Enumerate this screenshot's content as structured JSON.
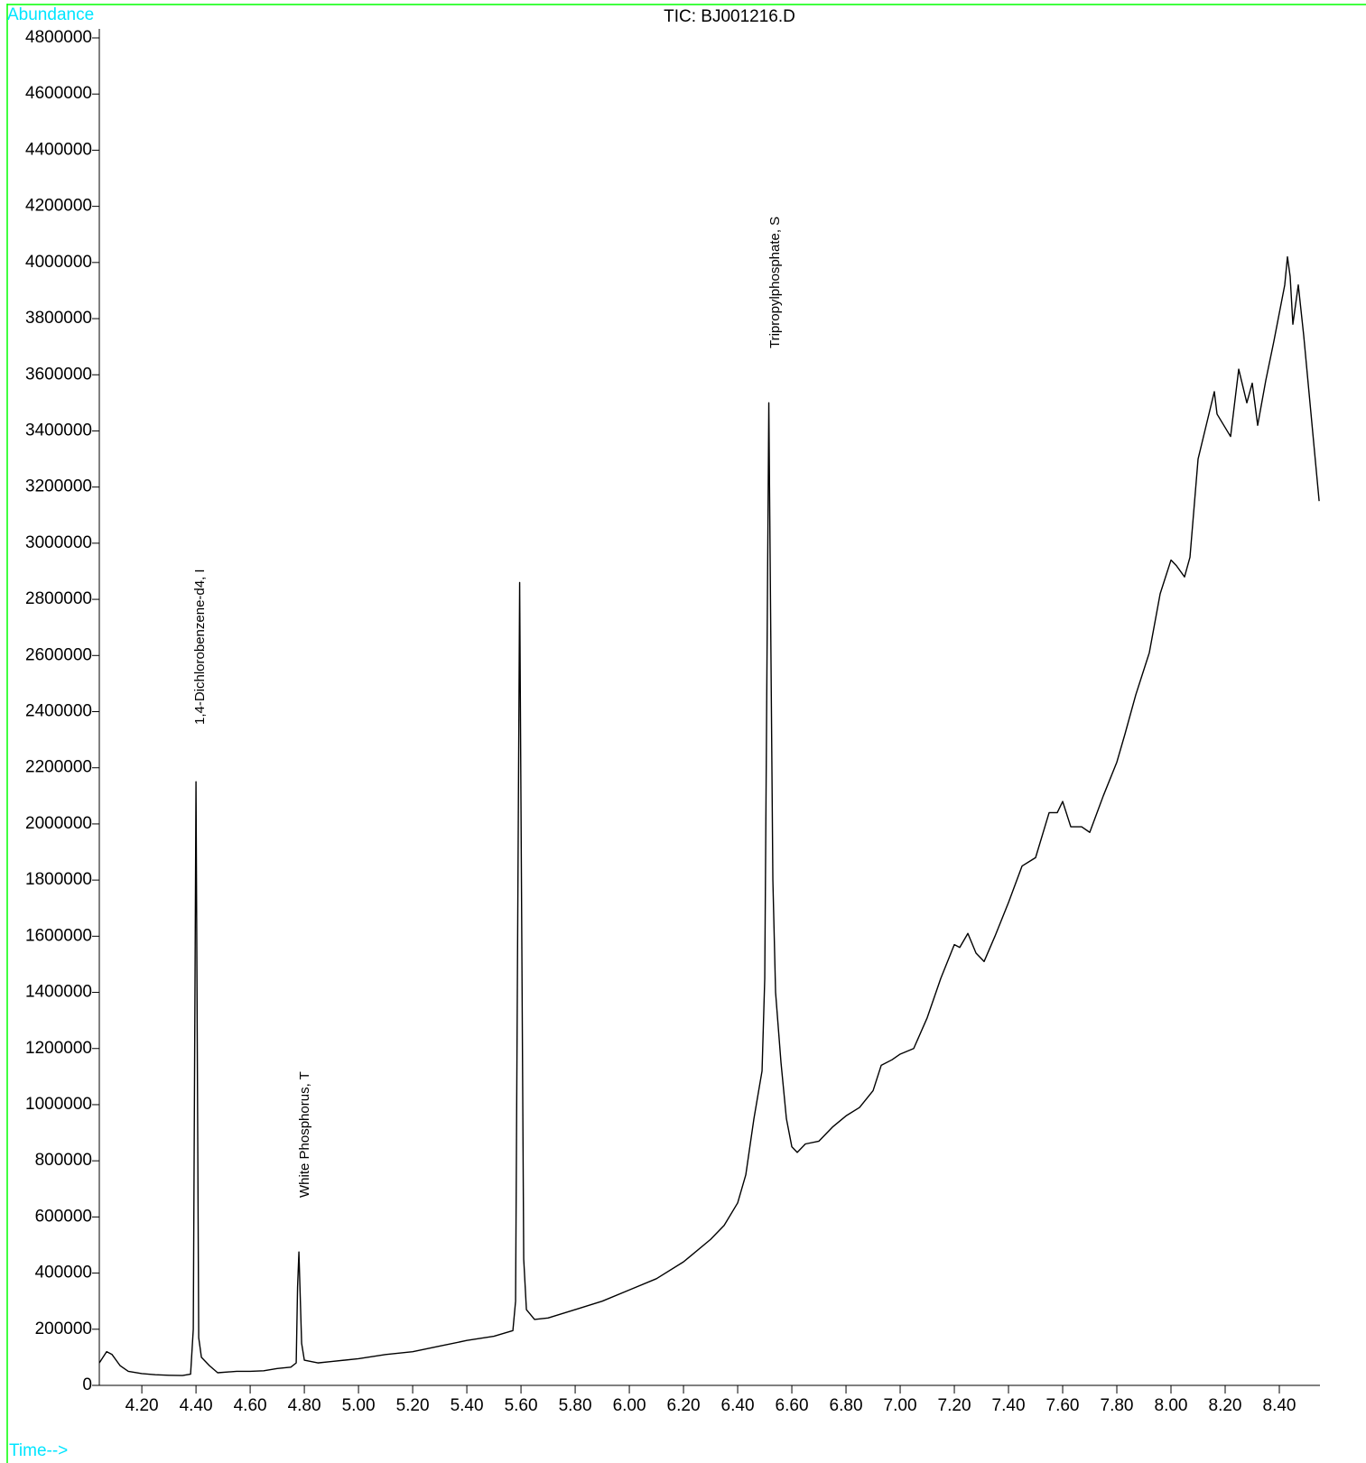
{
  "chart_data": {
    "type": "line",
    "title": "TIC: BJ001216.D",
    "y_label": "Abundance",
    "x_label": "Time-->",
    "annotations": [
      "1,4-Dichlorobenzene-d4, I",
      "White Phosphorus, T",
      "Tripropylphosphate, S"
    ],
    "x": [
      4.043,
      4.07,
      4.09,
      4.12,
      4.15,
      4.2,
      4.25,
      4.3,
      4.35,
      4.38,
      4.39,
      4.4,
      4.41,
      4.42,
      4.45,
      4.48,
      4.55,
      4.6,
      4.65,
      4.7,
      4.75,
      4.77,
      4.775,
      4.78,
      4.79,
      4.8,
      4.85,
      4.9,
      5.0,
      5.1,
      5.2,
      5.3,
      5.4,
      5.5,
      5.57,
      5.58,
      5.595,
      5.61,
      5.62,
      5.65,
      5.7,
      5.8,
      5.9,
      6.0,
      6.1,
      6.2,
      6.3,
      6.35,
      6.4,
      6.43,
      6.46,
      6.49,
      6.5,
      6.515,
      6.53,
      6.54,
      6.56,
      6.58,
      6.6,
      6.62,
      6.65,
      6.7,
      6.75,
      6.8,
      6.85,
      6.9,
      6.93,
      6.97,
      7.0,
      7.05,
      7.1,
      7.15,
      7.2,
      7.22,
      7.25,
      7.28,
      7.31,
      7.35,
      7.4,
      7.45,
      7.5,
      7.55,
      7.58,
      7.6,
      7.63,
      7.67,
      7.7,
      7.75,
      7.8,
      7.83,
      7.87,
      7.92,
      7.96,
      8.0,
      8.02,
      8.05,
      8.07,
      8.1,
      8.13,
      8.16,
      8.17,
      8.22,
      8.25,
      8.28,
      8.3,
      8.32,
      8.35,
      8.38,
      8.42,
      8.43,
      8.44,
      8.45,
      8.47,
      8.49,
      8.547
    ],
    "series": [
      {
        "name": "TIC",
        "color": "#000000",
        "values": [
          80000,
          120000,
          110000,
          70000,
          50000,
          42000,
          38000,
          36000,
          35000,
          40000,
          200000,
          2150000,
          170000,
          100000,
          70000,
          45000,
          50000,
          50000,
          52000,
          60000,
          65000,
          80000,
          350000,
          475000,
          150000,
          90000,
          80000,
          85000,
          95000,
          110000,
          120000,
          140000,
          160000,
          175000,
          195000,
          300000,
          2860000,
          450000,
          270000,
          235000,
          240000,
          270000,
          300000,
          340000,
          380000,
          440000,
          520000,
          570000,
          650000,
          750000,
          950000,
          1120000,
          1450000,
          3500000,
          1800000,
          1400000,
          1150000,
          950000,
          850000,
          830000,
          860000,
          870000,
          920000,
          960000,
          990000,
          1050000,
          1140000,
          1160000,
          1180000,
          1200000,
          1310000,
          1450000,
          1570000,
          1560000,
          1610000,
          1540000,
          1510000,
          1600000,
          1720000,
          1850000,
          1880000,
          2040000,
          2040000,
          2080000,
          1990000,
          1990000,
          1970000,
          2100000,
          2220000,
          2320000,
          2460000,
          2610000,
          2820000,
          2940000,
          2920000,
          2880000,
          2950000,
          3300000,
          3420000,
          3540000,
          3460000,
          3380000,
          3620000,
          3500000,
          3570000,
          3420000,
          3580000,
          3720000,
          3920000,
          4020000,
          3950000,
          3780000,
          3920000,
          3740000,
          3150000
        ]
      }
    ],
    "xlim": [
      4.043,
      8.55
    ],
    "ylim": [
      0,
      4800000
    ],
    "xticks": [
      {
        "value": 4.2,
        "label": "4.20"
      },
      {
        "value": 4.4,
        "label": "4.40"
      },
      {
        "value": 4.6,
        "label": "4.60"
      },
      {
        "value": 4.8,
        "label": "4.80"
      },
      {
        "value": 5,
        "label": "5.00"
      },
      {
        "value": 5.2,
        "label": "5.20"
      },
      {
        "value": 5.4,
        "label": "5.40"
      },
      {
        "value": 5.6,
        "label": "5.60"
      },
      {
        "value": 5.8,
        "label": "5.80"
      },
      {
        "value": 6,
        "label": "6.00"
      },
      {
        "value": 6.2,
        "label": "6.20"
      },
      {
        "value": 6.4,
        "label": "6.40"
      },
      {
        "value": 6.6,
        "label": "6.60"
      },
      {
        "value": 6.8,
        "label": "6.80"
      },
      {
        "value": 7,
        "label": "7.00"
      },
      {
        "value": 7.2,
        "label": "7.20"
      },
      {
        "value": 7.4,
        "label": "7.40"
      },
      {
        "value": 7.6,
        "label": "7.60"
      },
      {
        "value": 7.8,
        "label": "7.80"
      },
      {
        "value": 8,
        "label": "8.00"
      },
      {
        "value": 8.2,
        "label": "8.20"
      },
      {
        "value": 8.4,
        "label": "8.40"
      }
    ],
    "yticks": [
      0,
      200000,
      400000,
      600000,
      800000,
      1000000,
      1200000,
      1400000,
      1600000,
      1800000,
      2000000,
      2200000,
      2400000,
      2600000,
      2800000,
      3000000,
      3200000,
      3400000,
      3600000,
      3800000,
      4000000,
      4200000,
      4400000,
      4600000,
      4800000
    ]
  }
}
